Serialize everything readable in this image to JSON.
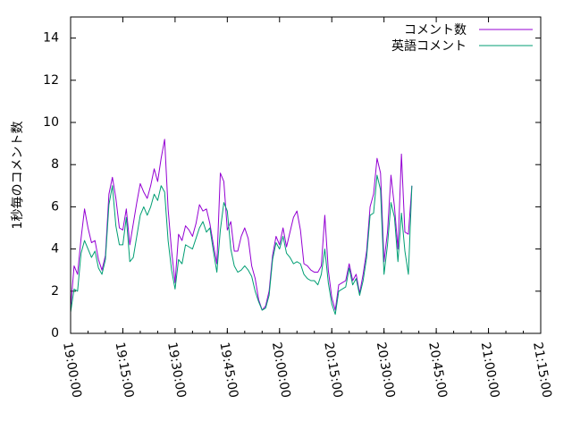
{
  "chart_data": {
    "type": "line",
    "title": "",
    "xlabel": "",
    "ylabel": "1秒毎のコメント数",
    "xlim": [
      "19:00:00",
      "21:15:00"
    ],
    "ylim": [
      0,
      15
    ],
    "x_ticks": [
      "19:00:00",
      "19:15:00",
      "19:30:00",
      "19:45:00",
      "20:00:00",
      "20:15:00",
      "20:30:00",
      "20:45:00",
      "21:00:00",
      "21:15:00"
    ],
    "y_ticks": [
      "0",
      "2",
      "4",
      "6",
      "8",
      "10",
      "12",
      "14"
    ],
    "x_minor_step_minutes": 5,
    "legend_position": "top-right",
    "colors": {
      "series1": "#9400d3",
      "series2": "#009e73"
    },
    "x_step_seconds": 60,
    "x_start": "19:00:00",
    "series": [
      {
        "name": "コメント数",
        "values": [
          1.2,
          3.2,
          2.8,
          4.5,
          5.9,
          5.0,
          4.3,
          4.4,
          3.5,
          3.0,
          3.7,
          6.6,
          7.4,
          6.4,
          5.0,
          4.9,
          5.9,
          4.2,
          5.2,
          6.2,
          7.1,
          6.7,
          6.4,
          7.0,
          7.8,
          7.2,
          8.3,
          9.2,
          5.9,
          3.9,
          2.4,
          4.7,
          4.4,
          5.1,
          4.9,
          4.6,
          5.2,
          6.1,
          5.8,
          5.9,
          5.2,
          4.2,
          3.3,
          7.6,
          7.2,
          4.9,
          5.3,
          3.9,
          3.9,
          4.6,
          5.0,
          4.5,
          3.2,
          2.6,
          1.6,
          1.1,
          1.3,
          2.0,
          3.7,
          4.6,
          4.2,
          5.0,
          4.1,
          4.8,
          5.5,
          5.8,
          4.9,
          3.3,
          3.2,
          3.0,
          2.9,
          2.9,
          3.2,
          5.6,
          3.0,
          1.7,
          1.1,
          2.3,
          2.4,
          2.5,
          3.3,
          2.5,
          2.8,
          1.9,
          2.8,
          3.9,
          6.0,
          6.6,
          8.3,
          7.6,
          3.4,
          4.8,
          7.5,
          6.0,
          4.0,
          8.5,
          4.8,
          4.7,
          7.0
        ]
      },
      {
        "name": "英語コメント",
        "values": [
          1.0,
          2.1,
          2.0,
          3.8,
          4.4,
          4.0,
          3.6,
          3.9,
          3.1,
          2.8,
          3.5,
          6.1,
          7.0,
          5.1,
          4.2,
          4.2,
          5.5,
          3.4,
          3.6,
          4.6,
          5.6,
          6.0,
          5.6,
          6.0,
          6.6,
          6.3,
          7.0,
          6.7,
          4.4,
          3.0,
          2.1,
          3.5,
          3.3,
          4.2,
          4.1,
          4.0,
          4.5,
          5.0,
          5.3,
          4.8,
          5.0,
          3.9,
          2.9,
          4.9,
          6.2,
          5.8,
          4.0,
          3.2,
          2.9,
          3.0,
          3.2,
          3.0,
          2.7,
          2.0,
          1.5,
          1.1,
          1.2,
          1.8,
          3.5,
          4.3,
          4.0,
          4.6,
          3.8,
          3.6,
          3.3,
          3.4,
          3.3,
          2.8,
          2.6,
          2.5,
          2.5,
          2.3,
          2.8,
          4.0,
          2.4,
          1.4,
          0.9,
          2.0,
          2.1,
          2.2,
          3.1,
          2.3,
          2.6,
          1.8,
          2.5,
          3.6,
          5.6,
          5.7,
          7.5,
          6.8,
          2.8,
          4.2,
          6.2,
          5.5,
          3.4,
          5.7,
          3.9,
          2.8,
          7.0
        ]
      }
    ]
  }
}
